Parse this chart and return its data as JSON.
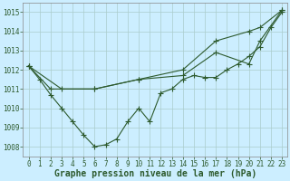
{
  "background_color": "#cceeff",
  "grid_color": "#aacccc",
  "line_color": "#2d5a2d",
  "xlabel": "Graphe pression niveau de la mer (hPa)",
  "xlabel_fontsize": 7,
  "ylim": [
    1007.5,
    1015.5
  ],
  "xlim": [
    -0.5,
    23.5
  ],
  "yticks": [
    1008,
    1009,
    1010,
    1011,
    1012,
    1013,
    1014,
    1015
  ],
  "xticks": [
    0,
    1,
    2,
    3,
    4,
    5,
    6,
    7,
    8,
    9,
    10,
    11,
    12,
    13,
    14,
    15,
    16,
    17,
    18,
    19,
    20,
    21,
    22,
    23
  ],
  "series1_x": [
    0,
    1,
    2,
    3,
    4,
    5,
    6,
    7,
    8,
    9,
    10,
    11,
    12,
    13,
    14,
    15,
    16,
    17,
    18,
    19,
    20,
    21,
    22,
    23
  ],
  "series1_y": [
    1012.2,
    1011.5,
    1010.7,
    1010.0,
    1009.3,
    1008.6,
    1008.0,
    1008.1,
    1008.4,
    1009.3,
    1010.0,
    1009.3,
    1010.8,
    1011.0,
    1011.5,
    1011.7,
    1011.6,
    1011.6,
    1012.0,
    1012.3,
    1012.7,
    1013.2,
    1014.2,
    1015.0
  ],
  "series2_x": [
    0,
    2,
    6,
    10,
    14,
    17,
    20,
    21,
    23
  ],
  "series2_y": [
    1012.2,
    1011.0,
    1011.0,
    1011.5,
    1012.0,
    1013.5,
    1014.0,
    1014.2,
    1015.1
  ],
  "series3_x": [
    0,
    3,
    6,
    10,
    14,
    17,
    20,
    21,
    23
  ],
  "series3_y": [
    1012.2,
    1011.0,
    1011.0,
    1011.5,
    1011.7,
    1012.9,
    1012.3,
    1013.5,
    1015.1
  ],
  "tick_fontsize": 5.5,
  "marker_size": 2.5,
  "linewidth": 0.8
}
